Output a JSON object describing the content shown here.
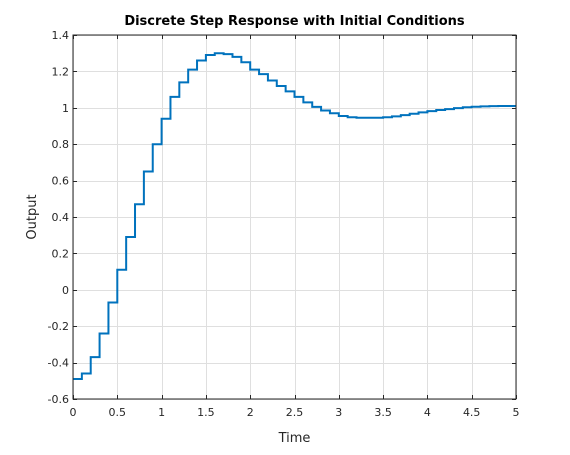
{
  "chart_data": {
    "type": "line",
    "plot_style": "stairs",
    "title": "Discrete Step Response with Initial Conditions",
    "xlabel": "Time",
    "ylabel": "Output",
    "xlim": [
      0,
      5
    ],
    "ylim": [
      -0.6,
      1.4
    ],
    "x_ticks": [
      0,
      0.5,
      1,
      1.5,
      2,
      2.5,
      3,
      3.5,
      4,
      4.5,
      5
    ],
    "x_tick_labels": [
      "0",
      "0.5",
      "1",
      "1.5",
      "2",
      "2.5",
      "3",
      "3.5",
      "4",
      "4.5",
      "5"
    ],
    "y_ticks": [
      -0.6,
      -0.4,
      -0.2,
      0,
      0.2,
      0.4,
      0.6,
      0.8,
      1,
      1.2,
      1.4
    ],
    "y_tick_labels": [
      "-0.6",
      "-0.4",
      "-0.2",
      "0",
      "0.2",
      "0.4",
      "0.6",
      "0.8",
      "1",
      "1.2",
      "1.4"
    ],
    "grid": true,
    "line_color": "#0072BD",
    "series": [
      {
        "x": [
          0,
          0.1,
          0.2,
          0.3,
          0.4,
          0.5,
          0.6,
          0.7,
          0.8,
          0.9,
          1.0,
          1.1,
          1.2,
          1.3,
          1.4,
          1.5,
          1.6,
          1.7,
          1.8,
          1.9,
          2.0,
          2.1,
          2.2,
          2.3,
          2.4,
          2.5,
          2.6,
          2.7,
          2.8,
          2.9,
          3.0,
          3.1,
          3.2,
          3.3,
          3.4,
          3.5,
          3.6,
          3.7,
          3.8,
          3.9,
          4.0,
          4.1,
          4.2,
          4.3,
          4.4,
          4.5,
          4.6,
          4.7,
          4.8,
          4.9
        ],
        "y": [
          -0.49,
          -0.46,
          -0.37,
          -0.24,
          -0.07,
          0.11,
          0.29,
          0.47,
          0.65,
          0.8,
          0.94,
          1.06,
          1.14,
          1.21,
          1.26,
          1.29,
          1.3,
          1.295,
          1.28,
          1.25,
          1.21,
          1.185,
          1.15,
          1.12,
          1.09,
          1.06,
          1.03,
          1.005,
          0.985,
          0.97,
          0.955,
          0.948,
          0.945,
          0.945,
          0.945,
          0.948,
          0.953,
          0.96,
          0.967,
          0.975,
          0.982,
          0.988,
          0.993,
          0.998,
          1.003,
          1.006,
          1.008,
          1.009,
          1.01,
          1.01
        ]
      }
    ]
  }
}
